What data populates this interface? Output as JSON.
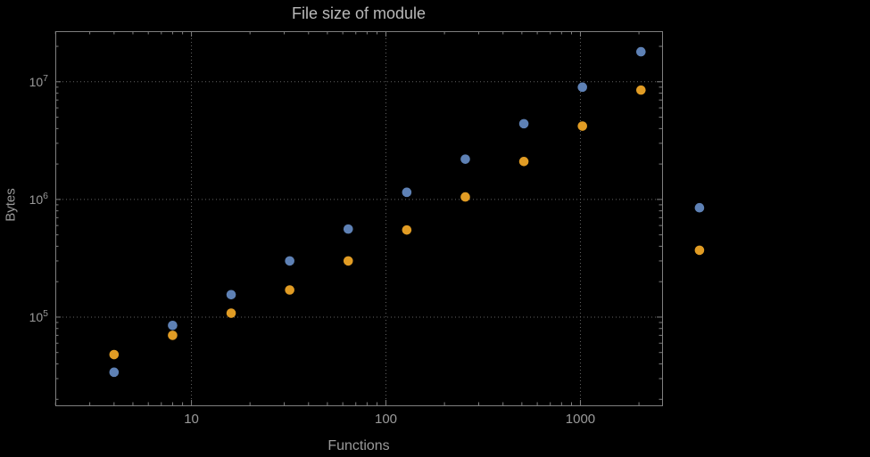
{
  "chart_data": {
    "type": "scatter",
    "title": "File size of module",
    "xlabel": "Functions",
    "ylabel": "Bytes",
    "x_scale": "log",
    "y_scale": "log",
    "grid": "dotted",
    "legend": "none",
    "x_range_log10": [
      0.3,
      3.42
    ],
    "y_range_log10": [
      4.25,
      7.43
    ],
    "x_major_ticks": [
      {
        "value": 10,
        "label": "10"
      },
      {
        "value": 100,
        "label": "100"
      },
      {
        "value": 1000,
        "label": "1000"
      }
    ],
    "y_major_tick_exponents": [
      5,
      6,
      7
    ],
    "x": [
      4,
      8,
      16,
      32,
      64,
      128,
      256,
      512,
      1024,
      2048,
      4096
    ],
    "series": [
      {
        "name": "blue",
        "color": "#5E81B5",
        "values": [
          34000,
          85000,
          155000,
          300000,
          560000,
          1150000,
          2200000,
          4400000,
          9000000,
          18000000,
          850000
        ]
      },
      {
        "name": "orange",
        "color": "#E19C24",
        "values": [
          48000,
          70000,
          108000,
          170000,
          300000,
          550000,
          1050000,
          2100000,
          4200000,
          8500000,
          370000
        ]
      }
    ]
  },
  "colors": {
    "background": "#000000",
    "frame": "#7f7f7f",
    "grid": "#636363",
    "tick_text": "#9a9a9a",
    "title_text": "#b9b9b9"
  }
}
